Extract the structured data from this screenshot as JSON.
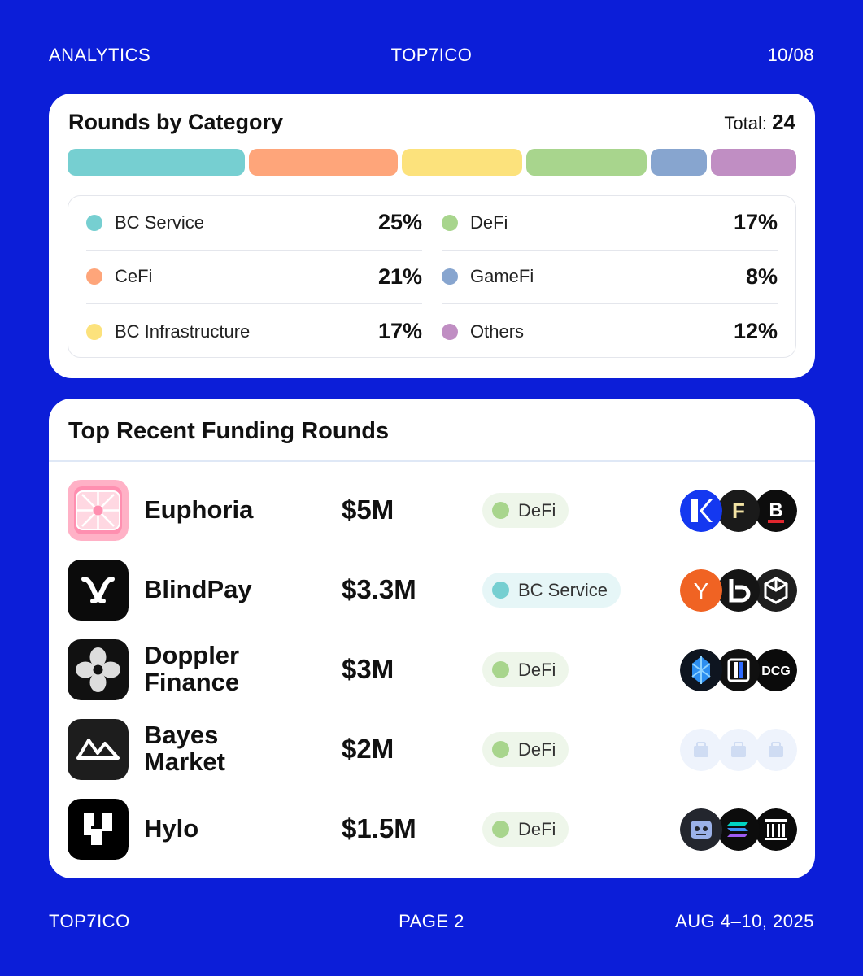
{
  "header": {
    "left": "ANALYTICS",
    "center": "TOP7ICO",
    "right": "10/08"
  },
  "categories": {
    "title": "Rounds by Category",
    "total_label": "Total:",
    "total_value": "24",
    "bar_segments": [
      {
        "name": "BC Service",
        "share": 0.25,
        "color": "#76cfd1"
      },
      {
        "name": "CeFi",
        "share": 0.21,
        "color": "#fea57a"
      },
      {
        "name": "BC Infrastructure",
        "share": 0.17,
        "color": "#fce27c"
      },
      {
        "name": "DeFi",
        "share": 0.17,
        "color": "#a8d58d"
      },
      {
        "name": "GameFi",
        "share": 0.08,
        "color": "#87a5cf"
      },
      {
        "name": "Others",
        "share": 0.12,
        "color": "#c08ec3"
      }
    ],
    "legend_left": [
      {
        "name": "BC Service",
        "pct": "25%",
        "color": "#76cfd1"
      },
      {
        "name": "CeFi",
        "pct": "21%",
        "color": "#fea57a"
      },
      {
        "name": "BC Infrastructure",
        "pct": "17%",
        "color": "#fce27c"
      }
    ],
    "legend_right": [
      {
        "name": "DeFi",
        "pct": "17%",
        "color": "#a8d58d"
      },
      {
        "name": "GameFi",
        "pct": "8%",
        "color": "#87a5cf"
      },
      {
        "name": "Others",
        "pct": "12%",
        "color": "#c08ec3"
      }
    ]
  },
  "funding": {
    "title": "Top Recent Funding Rounds",
    "rows": [
      {
        "name": "Euphoria",
        "amount": "$5M",
        "category": "DeFi",
        "category_color": "#a8d58d",
        "tag_bg": "#eef6ea",
        "logo_icon": "euphoria-logo",
        "investors": [
          "k-investor-icon",
          "f-investor-icon",
          "b-investor-icon"
        ]
      },
      {
        "name": "BlindPay",
        "amount": "$3.3M",
        "category": "BC Service",
        "category_color": "#76cfd1",
        "tag_bg": "#e6f6f7",
        "logo_icon": "blindpay-logo",
        "investors": [
          "y-investor-icon",
          "b-mark-investor-icon",
          "cube-investor-icon"
        ]
      },
      {
        "name": "Doppler\nFinance",
        "amount": "$3M",
        "category": "DeFi",
        "category_color": "#a8d58d",
        "tag_bg": "#eef6ea",
        "logo_icon": "doppler-logo",
        "investors": [
          "crystal-investor-icon",
          "h-investor-icon",
          "dcg-investor-icon"
        ]
      },
      {
        "name": "Bayes\nMarket",
        "amount": "$2M",
        "category": "DeFi",
        "category_color": "#a8d58d",
        "tag_bg": "#eef6ea",
        "logo_icon": "bayes-logo",
        "investors": [
          "placeholder-investor-icon",
          "placeholder-investor-icon",
          "placeholder-investor-icon"
        ]
      },
      {
        "name": "Hylo",
        "amount": "$1.5M",
        "category": "DeFi",
        "category_color": "#a8d58d",
        "tag_bg": "#eef6ea",
        "logo_icon": "hylo-logo",
        "investors": [
          "robot-investor-icon",
          "solana-investor-icon",
          "pillar-investor-icon"
        ]
      }
    ]
  },
  "footer": {
    "left": "TOP7ICO",
    "center": "PAGE 2",
    "right": "AUG 4–10, 2025"
  },
  "colors": {
    "background": "#0c1ed8",
    "card": "#ffffff"
  },
  "investor_glyphs": {
    "dcg": "DCG"
  }
}
